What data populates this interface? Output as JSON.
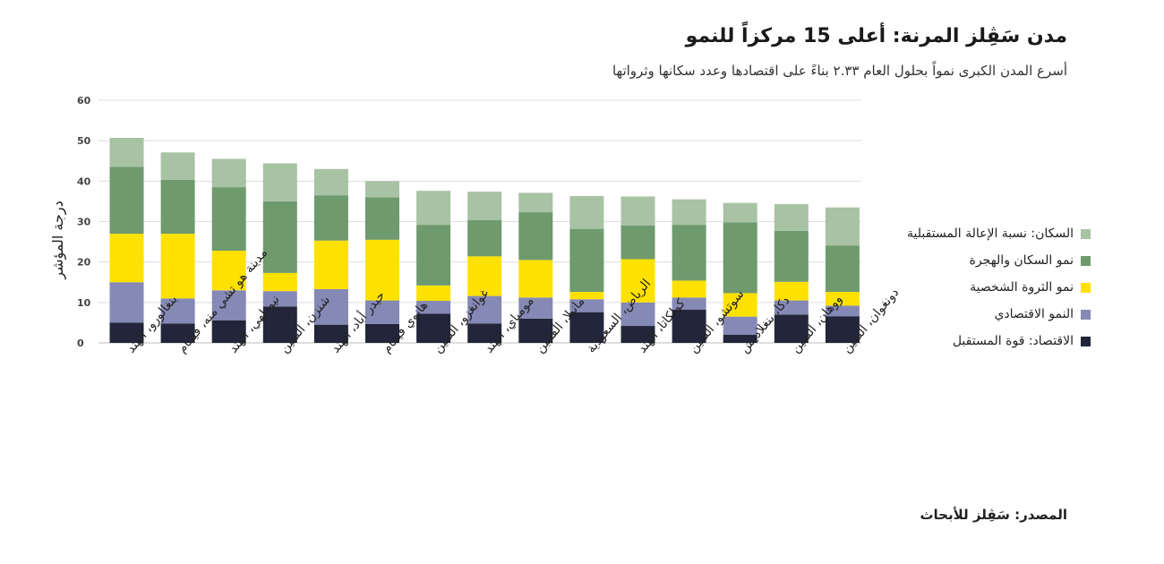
{
  "title": "مدن سَڤِلز المرنة: أعلى 15 مركزاً للنمو",
  "subtitle": "أسرع المدن الكبرى نمواً بحلول العام ٢.٣٣ بناءً على اقتصادها وعدد سكانها وثرواتها",
  "source": "المصدر: سَڤِلز للأبحاث",
  "chart_data": {
    "type": "bar",
    "stacked": true,
    "ylabel": "درجة المؤشر",
    "ylim": [
      0,
      60
    ],
    "yticks": [
      0,
      10,
      20,
      30,
      40,
      50,
      60
    ],
    "grid": true,
    "legend_position": "right",
    "categories": [
      "بنغالورو، الهند",
      "مدينة هو تشي منه، فيتنام",
      "نيودلهي، الهند",
      "شنزن، الصين",
      "حيدر أباد، الهند",
      "هانوي فيتنام",
      "غوانغزو، الصين",
      "مومباي، الهند",
      "مانيلا، الفلبين",
      "الرياض، السعودية",
      "كولكاتا، الهند",
      "سوتشو، الصين",
      "دكا، بنغلاديش",
      "ووهان، الصين",
      "دونغوان، الصين"
    ],
    "series": [
      {
        "name": "الاقتصاد: قوة المستقبل",
        "color": "#23263b",
        "values": [
          5,
          4.8,
          5.6,
          9,
          4.5,
          4.7,
          7.2,
          4.8,
          6,
          7.6,
          4.2,
          8.2,
          2,
          7,
          6.6
        ]
      },
      {
        "name": "النمو الاقتصادي",
        "color": "#8589b5",
        "values": [
          10,
          6.2,
          7.4,
          3.8,
          8.8,
          5.8,
          3.2,
          6.8,
          5.2,
          3.2,
          5.8,
          3,
          4.5,
          3.5,
          2.6
        ]
      },
      {
        "name": "نمو الثروة الشخصية",
        "color": "#ffe100",
        "values": [
          12,
          16,
          9.8,
          4.5,
          12,
          15,
          3.8,
          9.8,
          9.3,
          1.8,
          10.7,
          4.2,
          5.8,
          4.6,
          3.4
        ]
      },
      {
        "name": "نمو السكان والهجرة",
        "color": "#6e9a6e",
        "values": [
          16.5,
          13.3,
          15.7,
          17.7,
          11.2,
          10.5,
          15,
          9,
          11.8,
          15.6,
          8.3,
          13.8,
          17.5,
          12.6,
          11.5
        ]
      },
      {
        "name": "السكان: نسبة الإعالة المستقبلية",
        "color": "#a8c2a4",
        "values": [
          7.2,
          6.8,
          7,
          9.4,
          6.5,
          4,
          8.4,
          7,
          4.8,
          8.1,
          7.2,
          6.3,
          4.8,
          6.6,
          9.4
        ]
      }
    ]
  }
}
